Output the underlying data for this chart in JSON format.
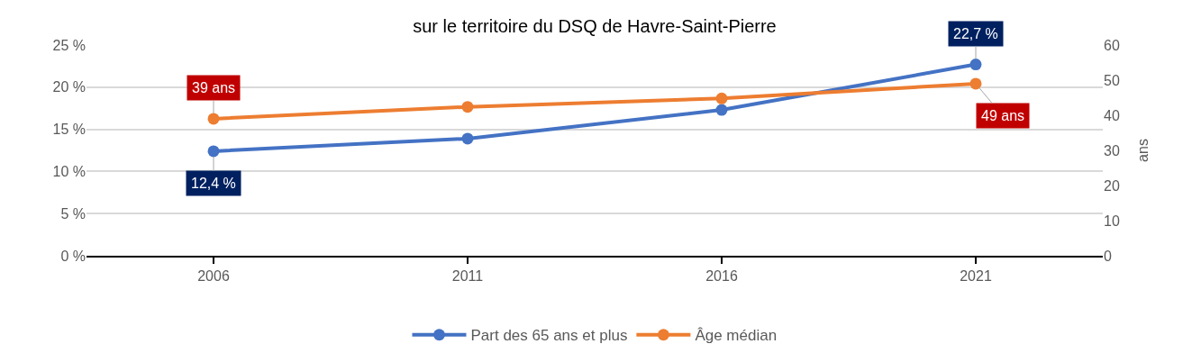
{
  "chart_data": {
    "type": "line",
    "title": "sur le territoire du DSQ de Havre-Saint-Pierre",
    "categories": [
      "2006",
      "2011",
      "2016",
      "2021"
    ],
    "y2label": "ans",
    "series": [
      {
        "name": "Part des 65 ans et plus",
        "color": "#4472c4",
        "values": [
          12.4,
          13.9,
          17.3,
          22.7
        ],
        "value_labels": [
          "12,4 %",
          null,
          null,
          "22,7 %"
        ]
      },
      {
        "name": "Âge médian",
        "color": "#ed7d31",
        "axis": "y2",
        "values": [
          39,
          42.4,
          44.8,
          49
        ],
        "value_labels": [
          "39 ans",
          null,
          null,
          "49 ans"
        ]
      }
    ],
    "ylim": [
      0,
      25
    ],
    "yticks": [
      {
        "value": 0,
        "label": "0 %"
      },
      {
        "value": 5,
        "label": "5 %"
      },
      {
        "value": 10,
        "label": "10 %"
      },
      {
        "value": 15,
        "label": "15 %"
      },
      {
        "value": 20,
        "label": "20 %"
      },
      {
        "value": 25,
        "label": "25 %"
      }
    ],
    "y2lim": [
      0,
      60
    ],
    "y2ticks": [
      0,
      10,
      20,
      30,
      40,
      50,
      60
    ],
    "grid": "y",
    "legend": "bottom",
    "marker": "circle",
    "line_style": "solid"
  }
}
